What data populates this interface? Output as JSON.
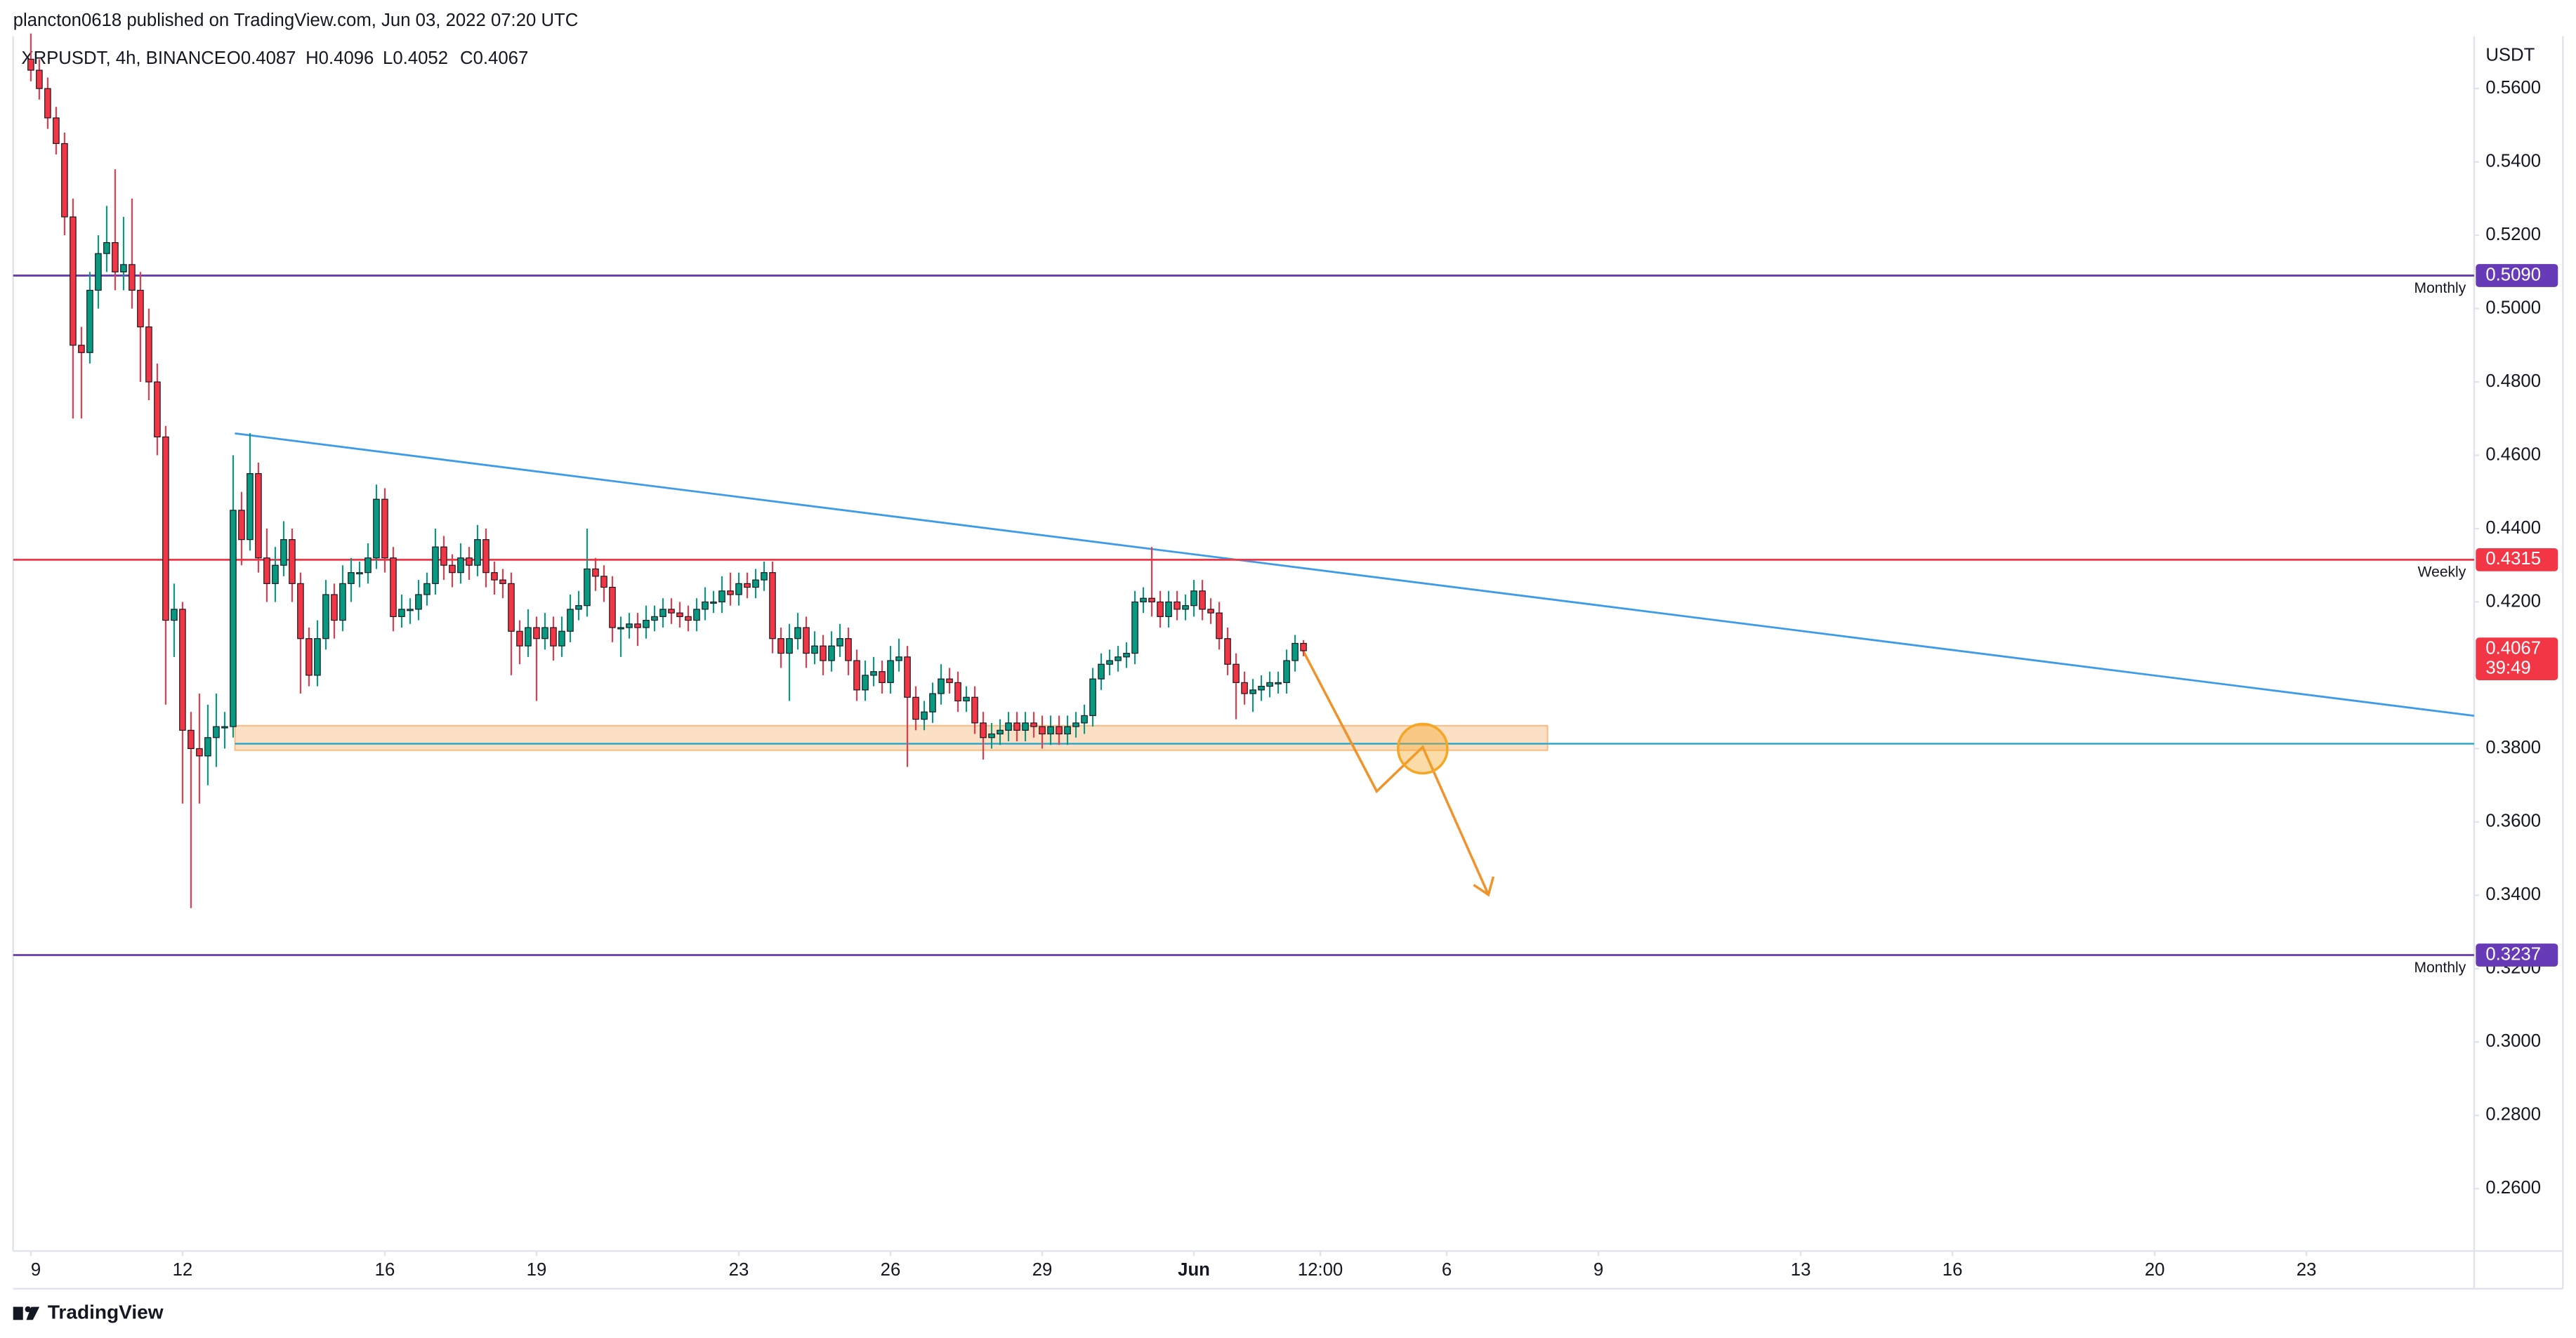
{
  "header": {
    "publisher": "plancton0618 published on TradingView.com, Jun 03, 2022 07:20 UTC",
    "symbol": "XRPUSDT, 4h, BINANCE",
    "ohlc": [
      "O0.4087",
      "H0.4096",
      "L0.4052",
      "C0.4067"
    ],
    "footer": "TradingView"
  },
  "chart_data": {
    "type": "candlestick",
    "currency": "USDT",
    "up_color": "#089981",
    "down_color": "#f23645",
    "xlim": [
      -2.1,
      289.9
    ],
    "ylim": [
      0.243,
      0.5743
    ],
    "xticks": [
      {
        "value": 0,
        "label": "9"
      },
      {
        "value": 18,
        "label": "12"
      },
      {
        "value": 42,
        "label": "16"
      },
      {
        "value": 60,
        "label": "19"
      },
      {
        "value": 84,
        "label": "23"
      },
      {
        "value": 102,
        "label": "26"
      },
      {
        "value": 120,
        "label": "29"
      },
      {
        "value": 138,
        "label": "Jun"
      },
      {
        "value": 153,
        "label": "12:00"
      },
      {
        "value": 168,
        "label": "6"
      },
      {
        "value": 186,
        "label": "9"
      },
      {
        "value": 210,
        "label": "13"
      },
      {
        "value": 228,
        "label": "16"
      },
      {
        "value": 252,
        "label": "20"
      },
      {
        "value": 270,
        "label": "23"
      }
    ],
    "yticks": [
      {
        "value": 0.56,
        "label": "0.5600"
      },
      {
        "value": 0.54,
        "label": "0.5400"
      },
      {
        "value": 0.52,
        "label": "0.5200"
      },
      {
        "value": 0.5,
        "label": "0.5000"
      },
      {
        "value": 0.48,
        "label": "0.4800"
      },
      {
        "value": 0.46,
        "label": "0.4600"
      },
      {
        "value": 0.44,
        "label": "0.4400"
      },
      {
        "value": 0.42,
        "label": "0.4200"
      },
      {
        "value": 0.4,
        "label": "0.4000"
      },
      {
        "value": 0.38,
        "label": "0.3800"
      },
      {
        "value": 0.36,
        "label": "0.3600"
      },
      {
        "value": 0.34,
        "label": "0.3400"
      },
      {
        "value": 0.32,
        "label": "0.3200"
      },
      {
        "value": 0.3,
        "label": "0.3000"
      },
      {
        "value": 0.28,
        "label": "0.2800"
      },
      {
        "value": 0.26,
        "label": "0.2600"
      }
    ],
    "grid": false,
    "levels": [
      {
        "value": 0.509,
        "label": "0.5090",
        "tag": "Monthly",
        "color": "#673ab7"
      },
      {
        "value": 0.4315,
        "label": "0.4315",
        "tag": "Weekly",
        "color": "#f23645"
      },
      {
        "value": 0.3237,
        "label": "0.3237",
        "tag": "Monthly",
        "color": "#673ab7"
      }
    ],
    "last_price_label": "0.4067",
    "countdown": "39:49",
    "candles": [
      [
        0.568,
        0.575,
        0.562,
        0.565
      ],
      [
        0.565,
        0.568,
        0.557,
        0.56
      ],
      [
        0.56,
        0.563,
        0.549,
        0.552
      ],
      [
        0.552,
        0.555,
        0.542,
        0.545
      ],
      [
        0.545,
        0.548,
        0.52,
        0.525
      ],
      [
        0.525,
        0.53,
        0.47,
        0.49
      ],
      [
        0.49,
        0.495,
        0.47,
        0.488
      ],
      [
        0.488,
        0.51,
        0.485,
        0.505
      ],
      [
        0.505,
        0.52,
        0.5,
        0.515
      ],
      [
        0.515,
        0.528,
        0.51,
        0.518
      ],
      [
        0.518,
        0.538,
        0.505,
        0.51
      ],
      [
        0.51,
        0.525,
        0.505,
        0.512
      ],
      [
        0.512,
        0.53,
        0.5,
        0.505
      ],
      [
        0.505,
        0.51,
        0.48,
        0.495
      ],
      [
        0.495,
        0.5,
        0.475,
        0.48
      ],
      [
        0.48,
        0.485,
        0.46,
        0.465
      ],
      [
        0.465,
        0.468,
        0.392,
        0.415
      ],
      [
        0.415,
        0.425,
        0.405,
        0.418
      ],
      [
        0.418,
        0.42,
        0.365,
        0.385
      ],
      [
        0.385,
        0.39,
        0.3365,
        0.38
      ],
      [
        0.38,
        0.395,
        0.365,
        0.378
      ],
      [
        0.378,
        0.392,
        0.37,
        0.383
      ],
      [
        0.383,
        0.395,
        0.375,
        0.386
      ],
      [
        0.386,
        0.39,
        0.38,
        0.386
      ],
      [
        0.386,
        0.46,
        0.383,
        0.445
      ],
      [
        0.445,
        0.45,
        0.43,
        0.437
      ],
      [
        0.437,
        0.466,
        0.434,
        0.455
      ],
      [
        0.455,
        0.458,
        0.428,
        0.432
      ],
      [
        0.432,
        0.44,
        0.42,
        0.425
      ],
      [
        0.425,
        0.435,
        0.42,
        0.43
      ],
      [
        0.43,
        0.442,
        0.427,
        0.437
      ],
      [
        0.437,
        0.44,
        0.42,
        0.425
      ],
      [
        0.425,
        0.428,
        0.395,
        0.41
      ],
      [
        0.41,
        0.413,
        0.397,
        0.4
      ],
      [
        0.4,
        0.415,
        0.397,
        0.41
      ],
      [
        0.41,
        0.426,
        0.407,
        0.422
      ],
      [
        0.422,
        0.425,
        0.41,
        0.415
      ],
      [
        0.415,
        0.43,
        0.412,
        0.425
      ],
      [
        0.425,
        0.432,
        0.42,
        0.428
      ],
      [
        0.428,
        0.431,
        0.424,
        0.428
      ],
      [
        0.428,
        0.436,
        0.425,
        0.432
      ],
      [
        0.432,
        0.452,
        0.429,
        0.448
      ],
      [
        0.448,
        0.451,
        0.428,
        0.432
      ],
      [
        0.432,
        0.435,
        0.412,
        0.416
      ],
      [
        0.416,
        0.422,
        0.413,
        0.418
      ],
      [
        0.418,
        0.421,
        0.414,
        0.418
      ],
      [
        0.418,
        0.426,
        0.415,
        0.422
      ],
      [
        0.422,
        0.428,
        0.419,
        0.425
      ],
      [
        0.425,
        0.44,
        0.422,
        0.435
      ],
      [
        0.435,
        0.438,
        0.426,
        0.43
      ],
      [
        0.43,
        0.433,
        0.424,
        0.428
      ],
      [
        0.428,
        0.436,
        0.425,
        0.432
      ],
      [
        0.432,
        0.435,
        0.426,
        0.43
      ],
      [
        0.43,
        0.441,
        0.427,
        0.437
      ],
      [
        0.437,
        0.44,
        0.424,
        0.428
      ],
      [
        0.428,
        0.431,
        0.422,
        0.426
      ],
      [
        0.426,
        0.429,
        0.421,
        0.425
      ],
      [
        0.425,
        0.428,
        0.4,
        0.412
      ],
      [
        0.412,
        0.415,
        0.403,
        0.408
      ],
      [
        0.408,
        0.418,
        0.405,
        0.413
      ],
      [
        0.413,
        0.416,
        0.393,
        0.41
      ],
      [
        0.41,
        0.417,
        0.407,
        0.413
      ],
      [
        0.413,
        0.416,
        0.404,
        0.408
      ],
      [
        0.408,
        0.416,
        0.405,
        0.412
      ],
      [
        0.412,
        0.422,
        0.409,
        0.418
      ],
      [
        0.418,
        0.423,
        0.415,
        0.419
      ],
      [
        0.419,
        0.44,
        0.416,
        0.429
      ],
      [
        0.429,
        0.432,
        0.423,
        0.427
      ],
      [
        0.427,
        0.43,
        0.42,
        0.424
      ],
      [
        0.424,
        0.427,
        0.409,
        0.413
      ],
      [
        0.413,
        0.416,
        0.405,
        0.413
      ],
      [
        0.413,
        0.417,
        0.41,
        0.414
      ],
      [
        0.414,
        0.417,
        0.408,
        0.413
      ],
      [
        0.413,
        0.419,
        0.41,
        0.415
      ],
      [
        0.415,
        0.419,
        0.412,
        0.416
      ],
      [
        0.416,
        0.421,
        0.413,
        0.418
      ],
      [
        0.418,
        0.421,
        0.414,
        0.417
      ],
      [
        0.417,
        0.42,
        0.413,
        0.416
      ],
      [
        0.416,
        0.419,
        0.412,
        0.415
      ],
      [
        0.415,
        0.421,
        0.412,
        0.418
      ],
      [
        0.418,
        0.424,
        0.415,
        0.42
      ],
      [
        0.42,
        0.423,
        0.417,
        0.42
      ],
      [
        0.42,
        0.427,
        0.417,
        0.423
      ],
      [
        0.423,
        0.428,
        0.419,
        0.422
      ],
      [
        0.422,
        0.428,
        0.419,
        0.425
      ],
      [
        0.425,
        0.428,
        0.421,
        0.424
      ],
      [
        0.424,
        0.429,
        0.421,
        0.426
      ],
      [
        0.426,
        0.431,
        0.423,
        0.428
      ],
      [
        0.428,
        0.431,
        0.406,
        0.41
      ],
      [
        0.41,
        0.413,
        0.402,
        0.406
      ],
      [
        0.406,
        0.414,
        0.393,
        0.41
      ],
      [
        0.41,
        0.417,
        0.407,
        0.413
      ],
      [
        0.413,
        0.416,
        0.402,
        0.406
      ],
      [
        0.406,
        0.412,
        0.403,
        0.408
      ],
      [
        0.408,
        0.411,
        0.4,
        0.404
      ],
      [
        0.404,
        0.412,
        0.401,
        0.408
      ],
      [
        0.408,
        0.414,
        0.405,
        0.41
      ],
      [
        0.41,
        0.413,
        0.4,
        0.404
      ],
      [
        0.404,
        0.407,
        0.393,
        0.396
      ],
      [
        0.396,
        0.404,
        0.393,
        0.4
      ],
      [
        0.4,
        0.405,
        0.397,
        0.401
      ],
      [
        0.401,
        0.404,
        0.395,
        0.398
      ],
      [
        0.398,
        0.408,
        0.395,
        0.404
      ],
      [
        0.404,
        0.41,
        0.401,
        0.405
      ],
      [
        0.405,
        0.408,
        0.375,
        0.394
      ],
      [
        0.394,
        0.397,
        0.385,
        0.388
      ],
      [
        0.388,
        0.393,
        0.385,
        0.39
      ],
      [
        0.39,
        0.398,
        0.387,
        0.395
      ],
      [
        0.395,
        0.403,
        0.392,
        0.399
      ],
      [
        0.399,
        0.402,
        0.395,
        0.398
      ],
      [
        0.398,
        0.401,
        0.39,
        0.393
      ],
      [
        0.393,
        0.397,
        0.39,
        0.394
      ],
      [
        0.394,
        0.397,
        0.384,
        0.387
      ],
      [
        0.387,
        0.39,
        0.377,
        0.383
      ],
      [
        0.383,
        0.387,
        0.38,
        0.384
      ],
      [
        0.384,
        0.388,
        0.381,
        0.385
      ],
      [
        0.385,
        0.39,
        0.382,
        0.387
      ],
      [
        0.387,
        0.39,
        0.382,
        0.385
      ],
      [
        0.385,
        0.39,
        0.382,
        0.387
      ],
      [
        0.387,
        0.39,
        0.383,
        0.386
      ],
      [
        0.386,
        0.389,
        0.38,
        0.384
      ],
      [
        0.384,
        0.389,
        0.381,
        0.386
      ],
      [
        0.386,
        0.389,
        0.381,
        0.384
      ],
      [
        0.384,
        0.389,
        0.381,
        0.386
      ],
      [
        0.386,
        0.39,
        0.383,
        0.387
      ],
      [
        0.387,
        0.392,
        0.384,
        0.389
      ],
      [
        0.389,
        0.402,
        0.386,
        0.399
      ],
      [
        0.399,
        0.406,
        0.396,
        0.403
      ],
      [
        0.403,
        0.407,
        0.4,
        0.404
      ],
      [
        0.404,
        0.408,
        0.401,
        0.405
      ],
      [
        0.405,
        0.409,
        0.402,
        0.406
      ],
      [
        0.406,
        0.423,
        0.403,
        0.42
      ],
      [
        0.42,
        0.424,
        0.417,
        0.421
      ],
      [
        0.421,
        0.435,
        0.416,
        0.42
      ],
      [
        0.42,
        0.423,
        0.413,
        0.416
      ],
      [
        0.416,
        0.423,
        0.413,
        0.42
      ],
      [
        0.42,
        0.423,
        0.415,
        0.418
      ],
      [
        0.418,
        0.422,
        0.415,
        0.419
      ],
      [
        0.419,
        0.426,
        0.416,
        0.423
      ],
      [
        0.423,
        0.426,
        0.415,
        0.418
      ],
      [
        0.418,
        0.421,
        0.414,
        0.417
      ],
      [
        0.417,
        0.42,
        0.407,
        0.41
      ],
      [
        0.41,
        0.413,
        0.4,
        0.403
      ],
      [
        0.403,
        0.406,
        0.388,
        0.398
      ],
      [
        0.398,
        0.401,
        0.392,
        0.395
      ],
      [
        0.395,
        0.399,
        0.39,
        0.396
      ],
      [
        0.396,
        0.4,
        0.393,
        0.397
      ],
      [
        0.397,
        0.401,
        0.394,
        0.398
      ],
      [
        0.398,
        0.401,
        0.395,
        0.398
      ],
      [
        0.398,
        0.407,
        0.395,
        0.404
      ],
      [
        0.404,
        0.411,
        0.401,
        0.4087
      ],
      [
        0.4087,
        0.4096,
        0.4052,
        0.4067
      ]
    ]
  }
}
